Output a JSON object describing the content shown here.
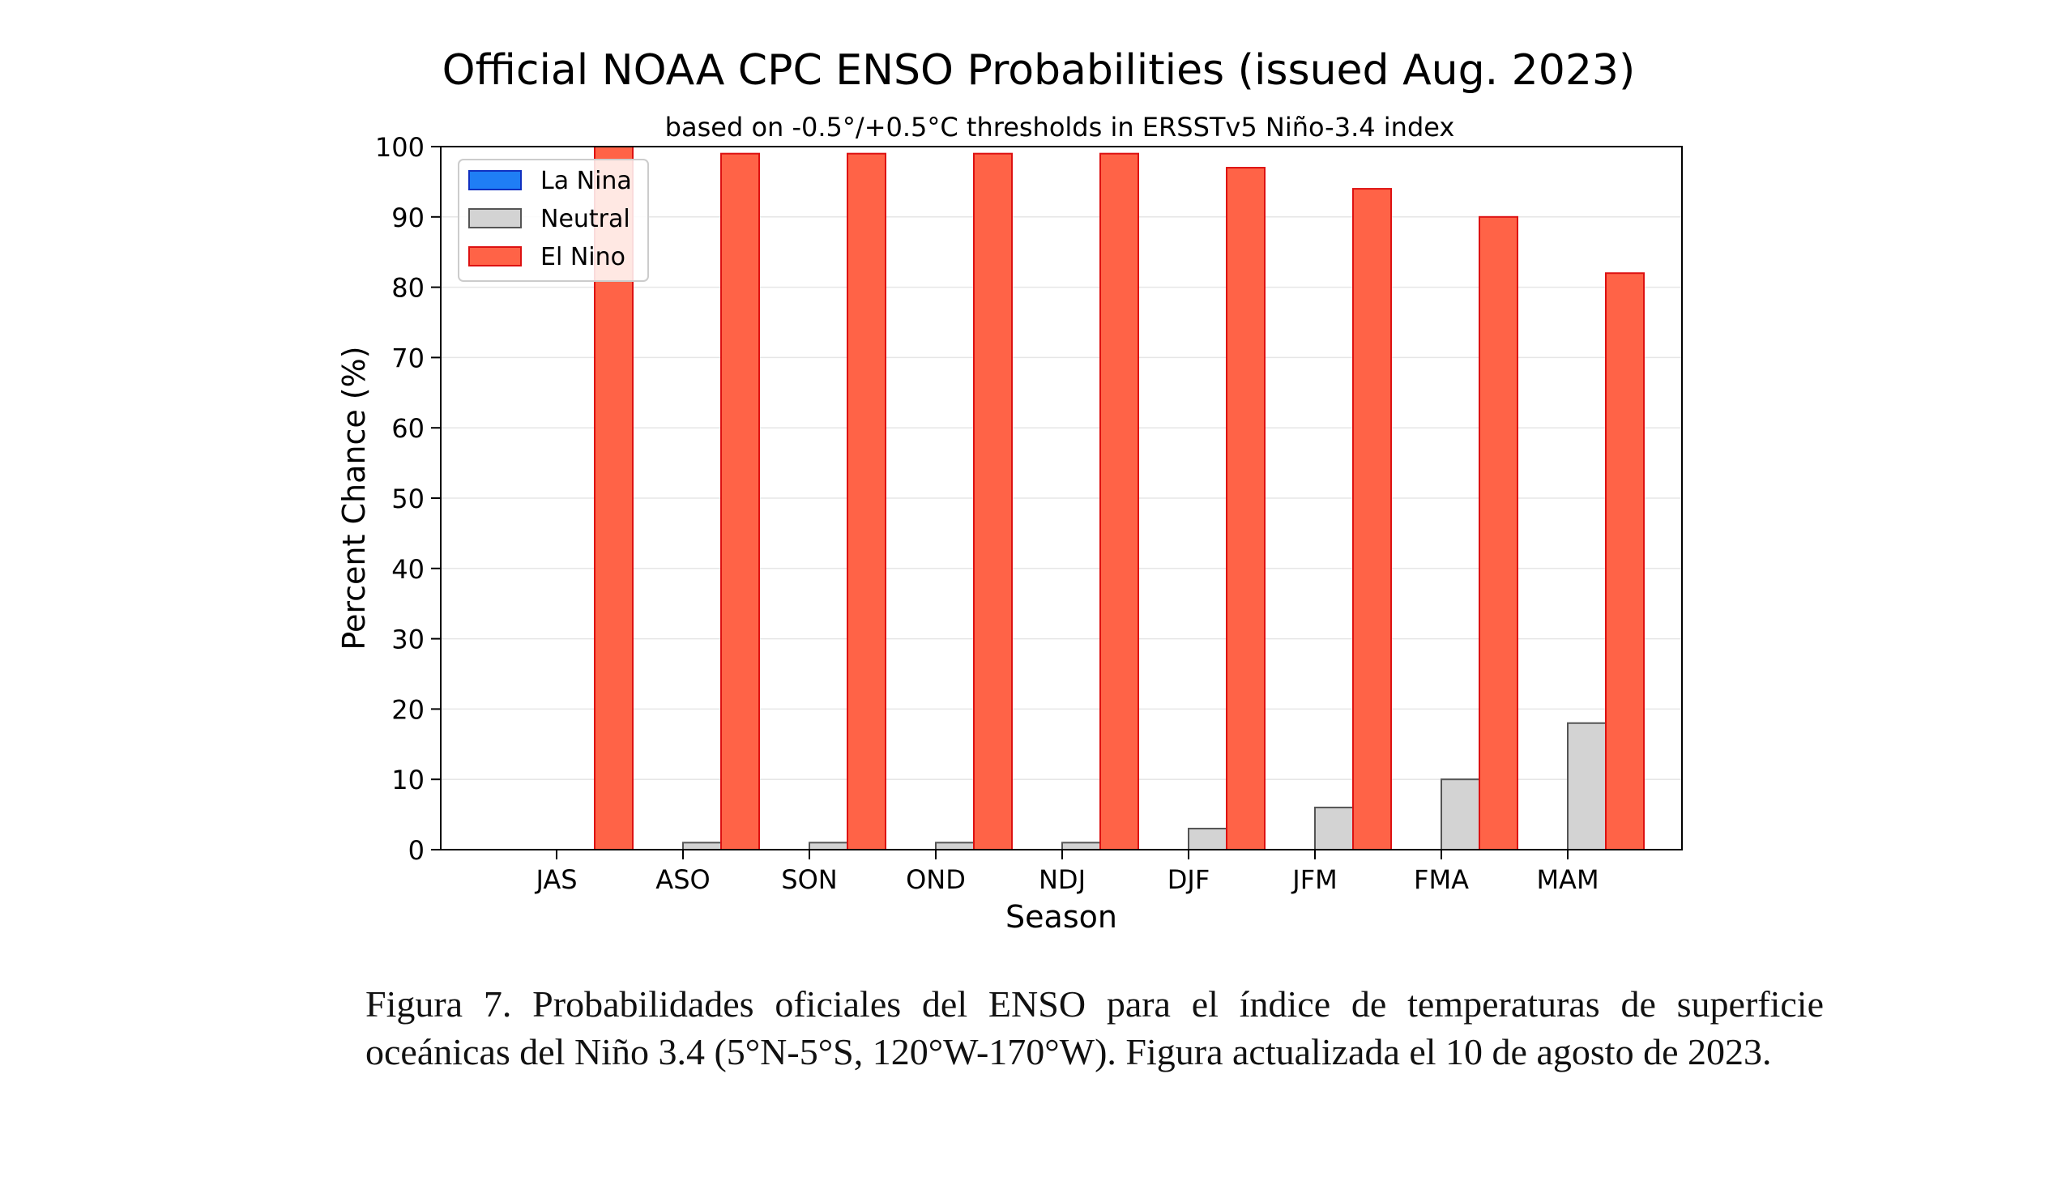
{
  "chart_data": {
    "type": "bar",
    "title": "Official NOAA CPC ENSO Probabilities (issued Aug. 2023)",
    "subtitle": "based on -0.5°/+0.5°C thresholds in ERSSTv5 Niño-3.4 index",
    "xlabel": "Season",
    "ylabel": "Percent Chance (%)",
    "ylim": [
      0,
      100
    ],
    "yticks": [
      "0",
      "10",
      "20",
      "30",
      "40",
      "50",
      "60",
      "70",
      "80",
      "90",
      "100"
    ],
    "grid": true,
    "legend_position": "top-left",
    "categories": [
      "JAS",
      "ASO",
      "SON",
      "OND",
      "NDJ",
      "DJF",
      "JFM",
      "FMA",
      "MAM"
    ],
    "series": [
      {
        "name": "La Nina",
        "color": "#1f7ef5",
        "edge_color": "#1030c0",
        "values": [
          0,
          0,
          0,
          0,
          0,
          0,
          0,
          0,
          0
        ]
      },
      {
        "name": "Neutral",
        "color": "#d3d3d3",
        "edge_color": "#555555",
        "values": [
          0,
          1,
          1,
          1,
          1,
          3,
          6,
          10,
          18
        ]
      },
      {
        "name": "El Nino",
        "color": "#ff6347",
        "edge_color": "#dd1111",
        "values": [
          100,
          99,
          99,
          99,
          99,
          97,
          94,
          90,
          82
        ]
      }
    ]
  },
  "caption": "Figura 7. Probabilidades oficiales del ENSO para el índice de temperaturas de superficie oceánicas del Niño 3.4 (5°N-5°S, 120°W-170°W). Figura actualizada el 10 de agosto de 2023."
}
